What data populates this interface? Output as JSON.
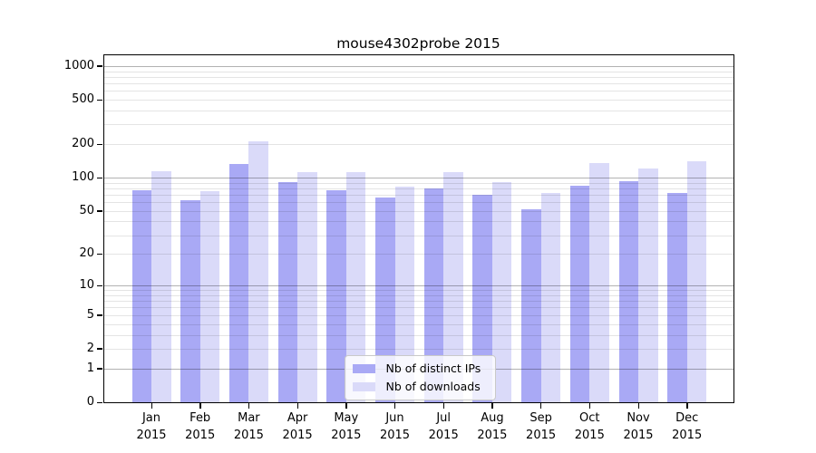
{
  "title": "mouse4302probe 2015",
  "chart_data": {
    "type": "bar",
    "title": "mouse4302probe 2015",
    "categories": [
      "Jan",
      "Feb",
      "Mar",
      "Apr",
      "May",
      "Jun",
      "Jul",
      "Aug",
      "Sep",
      "Oct",
      "Nov",
      "Dec"
    ],
    "category_year": "2015",
    "series": [
      {
        "key": "distinct-ips",
        "name": "Nb of distinct IPs",
        "color": "#a9a9f5",
        "values": [
          77,
          63,
          133,
          92,
          77,
          66,
          80,
          70,
          52,
          84,
          93,
          73
        ]
      },
      {
        "key": "downloads",
        "name": "Nb of downloads",
        "color": "#dadaf9",
        "values": [
          114,
          76,
          211,
          112,
          113,
          83,
          112,
          92,
          73,
          135,
          121,
          140
        ]
      }
    ],
    "y_axis": {
      "scale": "log10(value+1)",
      "tick_values": [
        0,
        1,
        2,
        5,
        10,
        20,
        50,
        100,
        200,
        500,
        1000
      ],
      "major_gridlines": [
        1,
        10,
        100,
        1000
      ],
      "minor_gridlines": [
        2,
        3,
        4,
        5,
        6,
        7,
        8,
        9,
        20,
        30,
        40,
        50,
        60,
        70,
        80,
        90,
        200,
        300,
        400,
        500,
        600,
        700,
        800,
        900
      ]
    },
    "xlabel": "",
    "ylabel": "",
    "grid": true,
    "legend_position": "lower center"
  },
  "colors": {
    "grid_minor": "#e4e4e4",
    "grid_major": "#b0b0b0",
    "axis": "#000000",
    "text": "#000000",
    "legend_border": "#c9c9c9",
    "background": "#ffffff"
  }
}
